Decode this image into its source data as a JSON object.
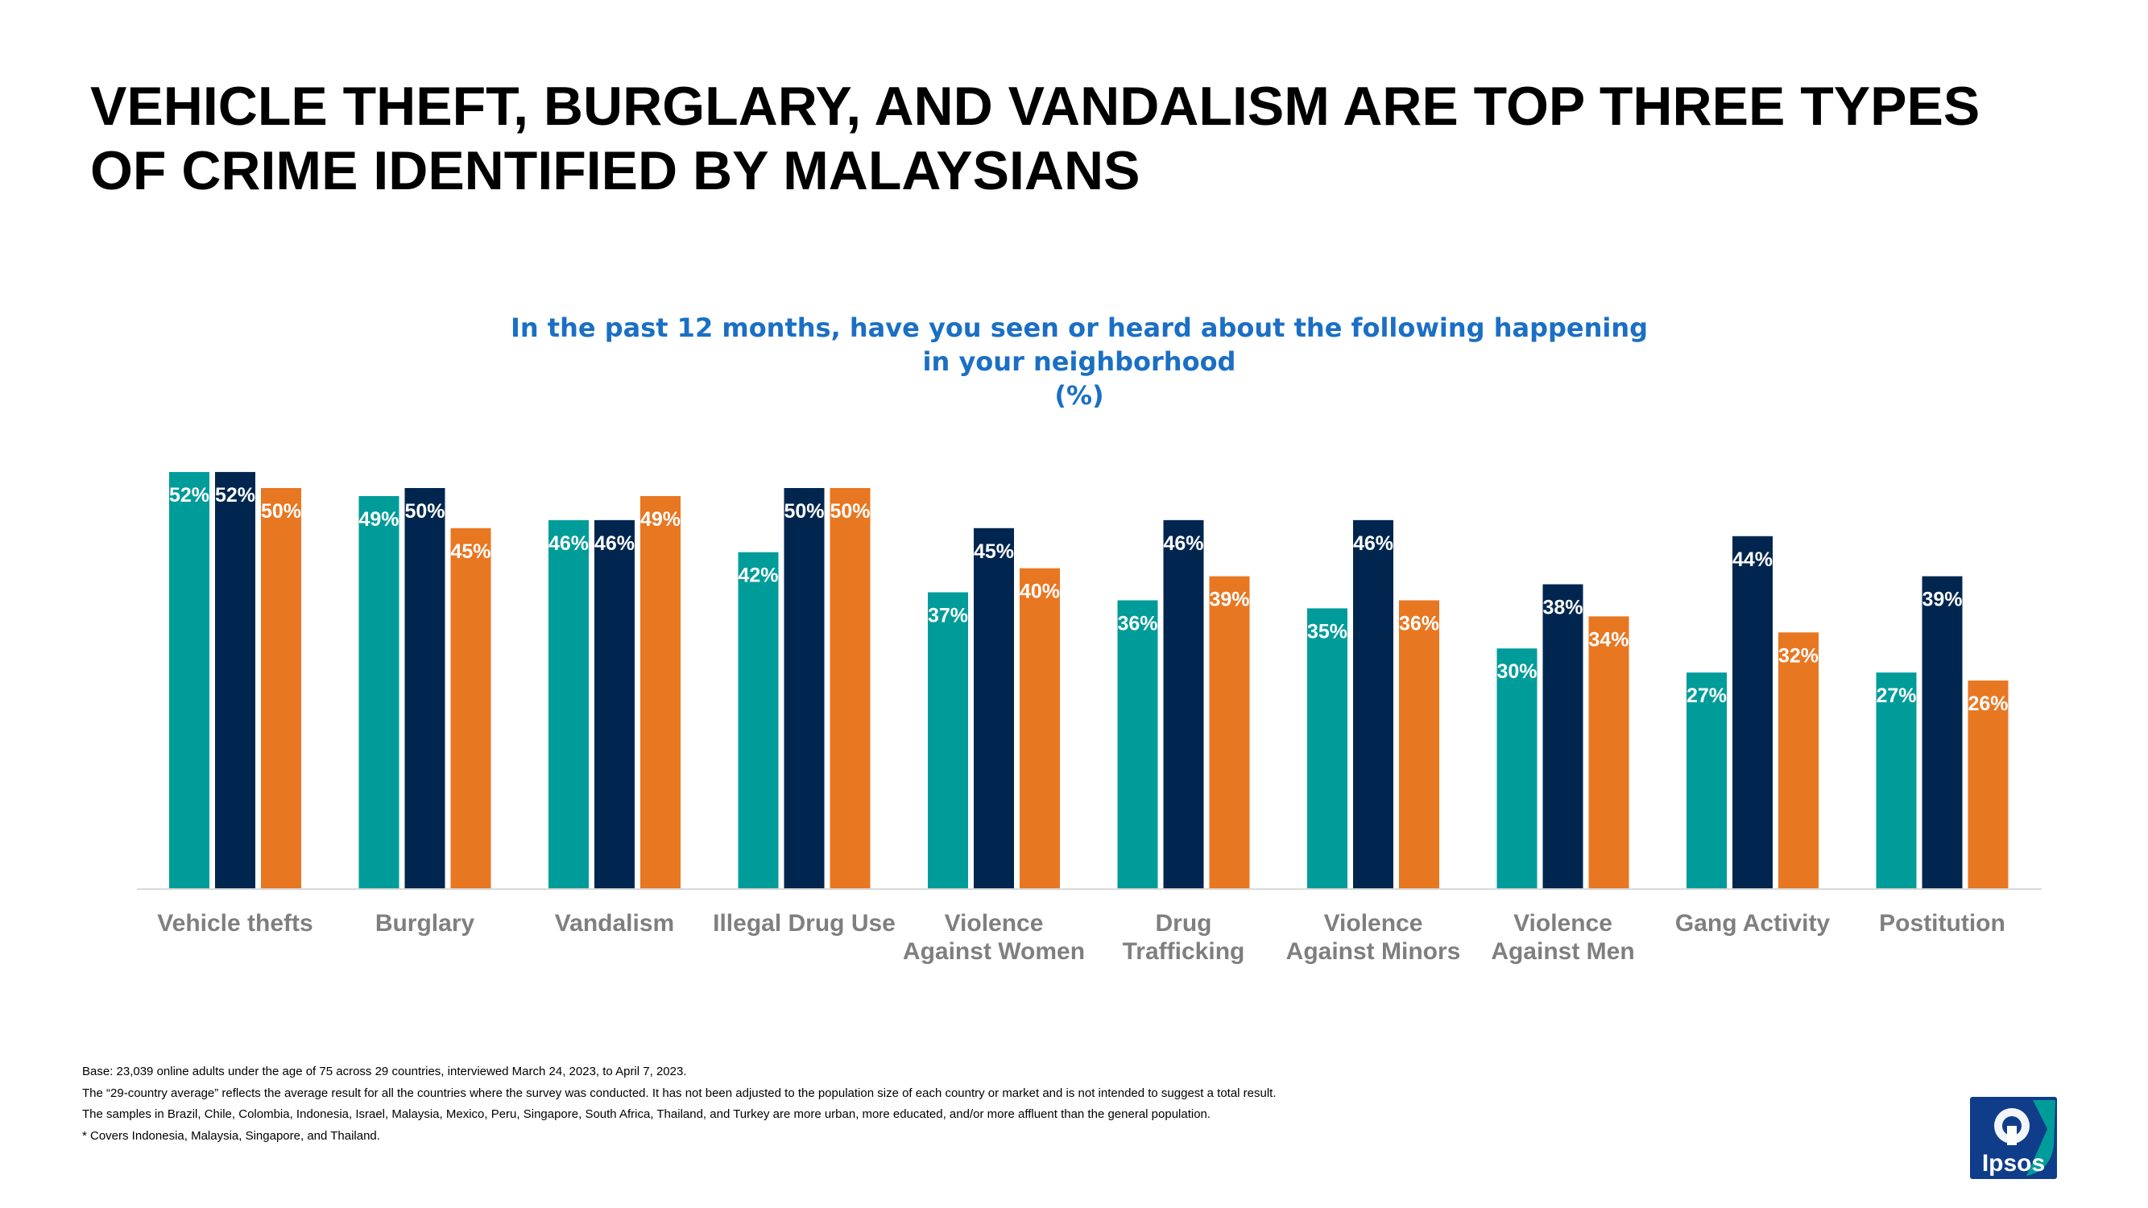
{
  "headline": {
    "line1": "VEHICLE THEFT, BURGLARY, AND VANDALISM ARE TOP THREE TYPES",
    "line2": "OF CRIME IDENTIFIED BY MALAYSIANS"
  },
  "chart_data": {
    "type": "bar",
    "title_lines": [
      "In the past 12 months, have you seen or heard about the following happening",
      "in your neighborhood",
      "(%)"
    ],
    "categories": [
      [
        "Vehicle thefts"
      ],
      [
        "Burglary"
      ],
      [
        "Vandalism"
      ],
      [
        "Illegal Drug Use"
      ],
      [
        "Violence",
        "Against Women"
      ],
      [
        "Drug",
        "Trafficking"
      ],
      [
        "Violence",
        "Against Minors"
      ],
      [
        "Violence",
        "Against Men"
      ],
      [
        "Gang Activity"
      ],
      [
        "Postitution"
      ]
    ],
    "series": [
      {
        "color": "#009c9a",
        "values": [
          52,
          49,
          46,
          42,
          37,
          36,
          35,
          30,
          27,
          27
        ]
      },
      {
        "color": "#00264f",
        "values": [
          52,
          50,
          46,
          50,
          45,
          46,
          46,
          38,
          44,
          39
        ]
      },
      {
        "color": "#e87722",
        "values": [
          50,
          45,
          49,
          50,
          40,
          39,
          36,
          34,
          32,
          26
        ]
      }
    ],
    "value_suffix": "%",
    "ylim": [
      0,
      55
    ],
    "grid": false,
    "legend": "none"
  },
  "footnotes": [
    "Base: 23,039 online adults under the age of 75 across 29 countries, interviewed March 24, 2023, to April 7, 2023.",
    "The “29-country average” reflects the average result for all the countries where the survey was conducted. It has not been adjusted to the population size of each country or market and is not intended to suggest a total result.",
    "The samples in Brazil, Chile, Colombia, Indonesia, Israel, Malaysia, Mexico, Peru, Singapore, South Africa, Thailand, and Turkey are more urban, more educated, and/or more affluent than the general population.",
    "* Covers Indonesia, Malaysia, Singapore, and Thailand."
  ],
  "logo": {
    "text": "Ipsos",
    "colors": {
      "background": "#0f3d8a",
      "accent": "#009c9a"
    }
  }
}
